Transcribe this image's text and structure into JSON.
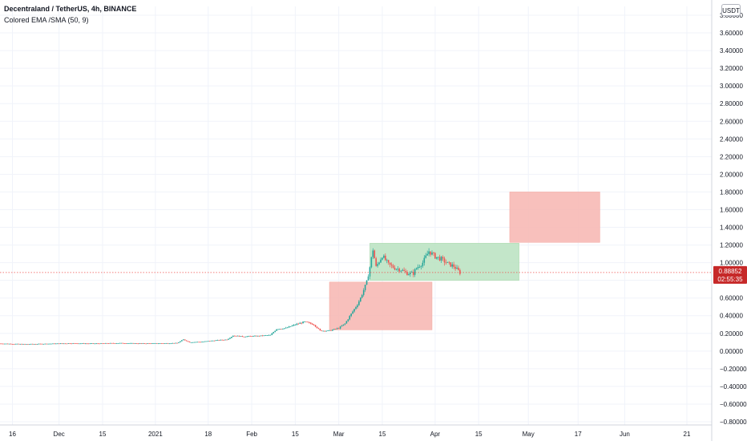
{
  "header": {
    "symbol": "Decentraland / TetherUS, 4h, BINANCE",
    "indicator": "Colored EMA /SMA (50, 9)"
  },
  "currency_label": "USDT",
  "last_price": {
    "value": "0.88852",
    "countdown": "02:55:35",
    "numeric": 0.8885
  },
  "colors": {
    "up": "#26a69a",
    "down": "#ef5350",
    "short_zone": "#f7b5b0",
    "long_zone": "#b9e2bf",
    "price_line": "#ef5350",
    "price_badge": "#c62828"
  },
  "chart_data": {
    "type": "candlestick",
    "title": "Decentraland / TetherUS, 4h, BINANCE",
    "xlabel": "",
    "ylabel": "",
    "ylim": [
      -0.8,
      3.8
    ],
    "y_ticks": [
      "3.80000",
      "3.60000",
      "3.40000",
      "3.20000",
      "3.00000",
      "2.80000",
      "2.60000",
      "2.40000",
      "2.20000",
      "2.00000",
      "1.80000",
      "1.60000",
      "1.40000",
      "1.20000",
      "1.00000",
      "0.80000",
      "0.60000",
      "0.40000",
      "0.20000",
      "0.00000",
      "−0.20000",
      "−0.40000",
      "−0.60000",
      "−0.80000"
    ],
    "x_ticks": [
      {
        "label": "16",
        "date": "2020-11-16"
      },
      {
        "label": "Dec",
        "date": "2020-12-01"
      },
      {
        "label": "15",
        "date": "2020-12-15"
      },
      {
        "label": "2021",
        "date": "2021-01-01"
      },
      {
        "label": "18",
        "date": "2021-01-18"
      },
      {
        "label": "Feb",
        "date": "2021-02-01"
      },
      {
        "label": "15",
        "date": "2021-02-15"
      },
      {
        "label": "Mar",
        "date": "2021-03-01"
      },
      {
        "label": "15",
        "date": "2021-03-15"
      },
      {
        "label": "Apr",
        "date": "2021-04-01"
      },
      {
        "label": "15",
        "date": "2021-04-15"
      },
      {
        "label": "May",
        "date": "2021-05-01"
      },
      {
        "label": "17",
        "date": "2021-05-17"
      },
      {
        "label": "Jun",
        "date": "2021-06-01"
      },
      {
        "label": "21",
        "date": "2021-06-21"
      }
    ],
    "x_range": [
      "2020-11-12",
      "2021-06-29"
    ],
    "price_series": [
      [
        "2020-11-12",
        0.085
      ],
      [
        "2020-11-20",
        0.078
      ],
      [
        "2020-11-28",
        0.083
      ],
      [
        "2020-12-05",
        0.088
      ],
      [
        "2020-12-12",
        0.085
      ],
      [
        "2020-12-20",
        0.09
      ],
      [
        "2020-12-28",
        0.086
      ],
      [
        "2021-01-04",
        0.088
      ],
      [
        "2021-01-08",
        0.09
      ],
      [
        "2021-01-10",
        0.13
      ],
      [
        "2021-01-12",
        0.1
      ],
      [
        "2021-01-16",
        0.105
      ],
      [
        "2021-01-20",
        0.12
      ],
      [
        "2021-01-24",
        0.13
      ],
      [
        "2021-01-26",
        0.175
      ],
      [
        "2021-01-29",
        0.165
      ],
      [
        "2021-02-03",
        0.17
      ],
      [
        "2021-02-07",
        0.18
      ],
      [
        "2021-02-09",
        0.25
      ],
      [
        "2021-02-12",
        0.26
      ],
      [
        "2021-02-15",
        0.3
      ],
      [
        "2021-02-18",
        0.33
      ],
      [
        "2021-02-21",
        0.3
      ],
      [
        "2021-02-23",
        0.23
      ],
      [
        "2021-02-26",
        0.23
      ],
      [
        "2021-03-01",
        0.26
      ],
      [
        "2021-03-03",
        0.31
      ],
      [
        "2021-03-05",
        0.42
      ],
      [
        "2021-03-07",
        0.53
      ],
      [
        "2021-03-08",
        0.6
      ],
      [
        "2021-03-10",
        0.78
      ],
      [
        "2021-03-11",
        0.95
      ],
      [
        "2021-03-12",
        1.15
      ],
      [
        "2021-03-13",
        0.95
      ],
      [
        "2021-03-15",
        1.08
      ],
      [
        "2021-03-17",
        0.98
      ],
      [
        "2021-03-19",
        0.94
      ],
      [
        "2021-03-21",
        0.92
      ],
      [
        "2021-03-23",
        0.88
      ],
      [
        "2021-03-25",
        0.88
      ],
      [
        "2021-03-26",
        0.94
      ],
      [
        "2021-03-28",
        1.0
      ],
      [
        "2021-03-30",
        1.13
      ],
      [
        "2021-04-01",
        1.07
      ],
      [
        "2021-04-03",
        1.04
      ],
      [
        "2021-04-05",
        0.99
      ],
      [
        "2021-04-07",
        0.96
      ],
      [
        "2021-04-09",
        0.888
      ]
    ],
    "zones": [
      {
        "kind": "short",
        "x0": "2021-02-26",
        "x1": "2021-03-31",
        "y0": 0.24,
        "y1": 0.78
      },
      {
        "kind": "long",
        "x0": "2021-03-11",
        "x1": "2021-04-28",
        "y0": 0.8,
        "y1": 1.22
      },
      {
        "kind": "short",
        "x0": "2021-04-25",
        "x1": "2021-05-24",
        "y0": 1.23,
        "y1": 1.8
      }
    ],
    "grid": true,
    "legend": "none"
  }
}
